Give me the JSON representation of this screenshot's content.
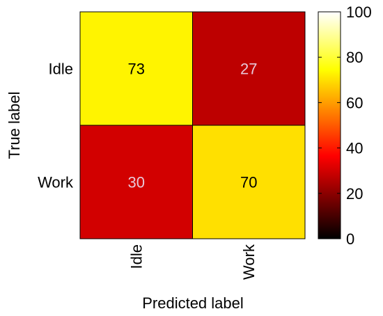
{
  "chart_data": {
    "type": "heatmap",
    "xlabel": "Predicted label",
    "ylabel": "True label",
    "x_categories": [
      "Idle",
      "Work"
    ],
    "y_categories": [
      "Idle",
      "Work"
    ],
    "values": [
      [
        73,
        27
      ],
      [
        30,
        70
      ]
    ],
    "colorbar": {
      "range": [
        0,
        100
      ],
      "ticks": [
        "0",
        "20",
        "40",
        "60",
        "80",
        "100"
      ],
      "colormap": "hot"
    },
    "cell_text_colors": {
      "light_bg": "#000000",
      "dark_bg": "#e8c8d8"
    }
  }
}
